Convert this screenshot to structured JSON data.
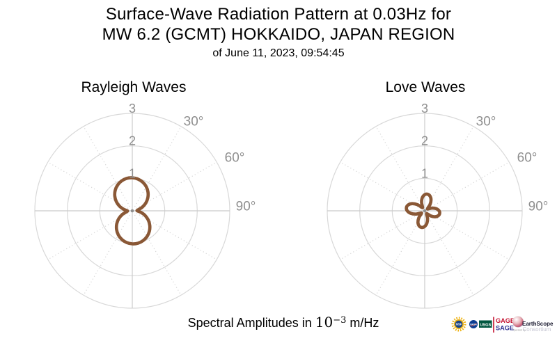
{
  "header": {
    "title_line1": "Surface-Wave Radiation Pattern at 0.03Hz for",
    "title_line2": "MW 6.2 (GCMT) HOKKAIDO, JAPAN REGION",
    "date_line": "of June 11, 2023, 09:54:45"
  },
  "caption": {
    "prefix": "Spectral Amplitudes in ",
    "base": "10",
    "exponent": "−3",
    "suffix": " m/Hz"
  },
  "colors": {
    "pattern_line": "#8a5836",
    "grid_circle": "#d8d8d8",
    "grid_cross": "#cbcbcb",
    "grid_dotted": "#d6d6d6",
    "tick_label": "#8f8f8f",
    "center_dot": "#8f8f8f"
  },
  "chart_data": [
    {
      "type": "line",
      "projection": "polar",
      "name": "rayleigh",
      "title": "Rayleigh Waves",
      "radial_ticks": [
        "1",
        "2",
        "3"
      ],
      "radial_max": 3,
      "angle_labels": [
        {
          "text": "30°",
          "deg": 30
        },
        {
          "text": "60°",
          "deg": 60
        },
        {
          "text": "90°",
          "deg": 90
        }
      ],
      "grid_step_deg": 30,
      "angle_convention": "azimuth clockwise from north (top)",
      "units": "10^-3 m/Hz",
      "azimuth_deg": [
        0,
        10,
        20,
        30,
        40,
        50,
        60,
        70,
        80,
        90,
        100,
        110,
        120,
        130,
        140,
        150,
        160,
        170,
        180,
        190,
        200,
        210,
        220,
        230,
        240,
        250,
        260,
        270,
        280,
        290,
        300,
        310,
        320,
        330,
        340,
        350
      ],
      "amplitude": [
        1.018,
        0.994,
        0.94,
        0.859,
        0.752,
        0.624,
        0.48,
        0.327,
        0.186,
        0.15,
        0.267,
        0.419,
        0.568,
        0.703,
        0.819,
        0.911,
        0.976,
        1.013,
        1.018,
        0.994,
        0.94,
        0.859,
        0.752,
        0.624,
        0.48,
        0.327,
        0.186,
        0.15,
        0.267,
        0.419,
        0.568,
        0.703,
        0.819,
        0.911,
        0.976,
        1.013
      ]
    },
    {
      "type": "line",
      "projection": "polar",
      "name": "love",
      "title": "Love Waves",
      "radial_ticks": [
        "1",
        "2",
        "3"
      ],
      "radial_max": 3,
      "angle_labels": [
        {
          "text": "30°",
          "deg": 30
        },
        {
          "text": "60°",
          "deg": 60
        },
        {
          "text": "90°",
          "deg": 90
        }
      ],
      "grid_step_deg": 30,
      "angle_convention": "azimuth clockwise from north (top)",
      "units": "10^-3 m/Hz",
      "azimuth_deg": [
        0,
        10,
        20,
        30,
        40,
        50,
        60,
        70,
        80,
        90,
        100,
        110,
        120,
        130,
        140,
        150,
        160,
        170,
        180,
        190,
        200,
        210,
        220,
        230,
        240,
        250,
        260,
        270,
        280,
        290,
        300,
        310,
        320,
        330,
        340,
        350
      ],
      "amplitude": [
        0.498,
        0.52,
        0.481,
        0.389,
        0.258,
        0.118,
        0.117,
        0.248,
        0.365,
        0.442,
        0.468,
        0.442,
        0.365,
        0.248,
        0.117,
        0.118,
        0.258,
        0.389,
        0.481,
        0.52,
        0.498,
        0.416,
        0.285,
        0.135,
        0.136,
        0.295,
        0.44,
        0.538,
        0.572,
        0.538,
        0.44,
        0.295,
        0.136,
        0.135,
        0.285,
        0.416
      ]
    }
  ],
  "logos": {
    "nsf": {
      "label": "NSF",
      "gold": "#EEB211",
      "navy": "#1C4587"
    },
    "nasa": {
      "label": "NASA",
      "blue": "#0B3D91",
      "red": "#E03C31"
    },
    "usgs": {
      "label": "USGS",
      "green": "#00563F"
    },
    "gage_sage": {
      "line1": "GAGE",
      "line2": "SAGE",
      "red": "#C41230",
      "purple": "#2E3192"
    },
    "earthscope": {
      "operated_by": "Operated by",
      "name": "EarthScope",
      "subname": "Consortium",
      "name_color": "#16162c",
      "subname_color": "#c5c5d2",
      "operated_color": "#9a9a9a"
    }
  }
}
